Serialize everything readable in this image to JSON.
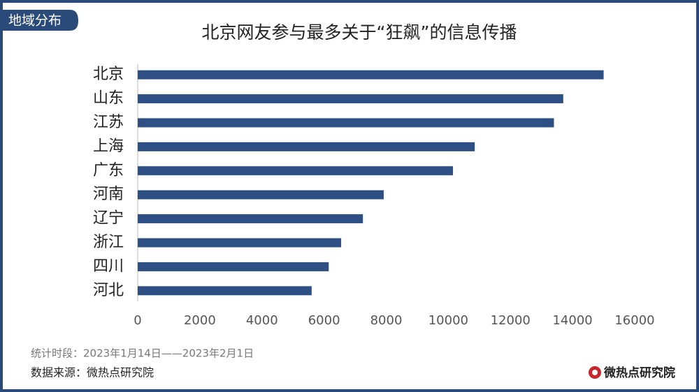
{
  "tag": "地域分布",
  "chart_data": {
    "type": "bar",
    "orientation": "horizontal",
    "title": "北京网友参与最多关于“狂飙”的信息传播",
    "categories": [
      "北京",
      "山东",
      "江苏",
      "上海",
      "广东",
      "河南",
      "辽宁",
      "浙江",
      "四川",
      "河北"
    ],
    "values": [
      15000,
      13700,
      13400,
      10850,
      10150,
      7920,
      7250,
      6550,
      6150,
      5600
    ],
    "color": "#2e4f84",
    "xlim": [
      0,
      16000
    ],
    "xticks": [
      0,
      2000,
      4000,
      6000,
      8000,
      10000,
      12000,
      14000,
      16000
    ],
    "grid": false
  },
  "footer": {
    "period": "统计时段：2023年1月14日——2023年2月1日",
    "source": "数据来源：微热点研究院",
    "logo": "微热点研究院"
  }
}
